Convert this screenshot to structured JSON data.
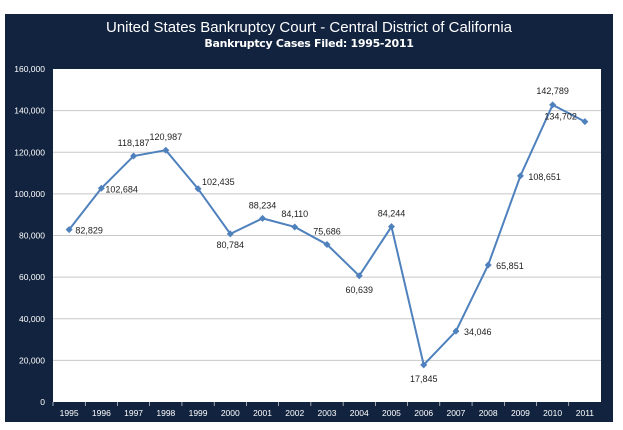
{
  "chart_data": {
    "type": "line",
    "title": "United States Bankruptcy Court - Central District of California",
    "subtitle": "Bankruptcy Cases Filed:  1995-2011",
    "categories": [
      "1995",
      "1996",
      "1997",
      "1998",
      "1999",
      "2000",
      "2001",
      "2002",
      "2003",
      "2004",
      "2005",
      "2006",
      "2007",
      "2008",
      "2009",
      "2010",
      "2011"
    ],
    "values": [
      82829,
      102684,
      118187,
      120987,
      102435,
      80784,
      88234,
      84110,
      75686,
      60639,
      84244,
      17845,
      34046,
      65851,
      108651,
      142789,
      134702
    ],
    "data_labels": [
      "82,829",
      "102,684",
      "118,187",
      "120,987",
      "102,435",
      "80,784",
      "88,234",
      "84,110",
      "75,686",
      "60,639",
      "84,244",
      "17,845",
      "34,046",
      "65,851",
      "108,651",
      "142,789",
      "134,702"
    ],
    "y_ticks": [
      "0",
      "20,000",
      "40,000",
      "60,000",
      "80,000",
      "100,000",
      "120,000",
      "140,000",
      "160,000"
    ],
    "ylim": [
      0,
      160000
    ],
    "grid": true,
    "legend": "none",
    "colors": {
      "background": "#12233f",
      "plot": "#ffffff",
      "line": "#4f81bd",
      "grid": "#c8c8c8"
    }
  }
}
